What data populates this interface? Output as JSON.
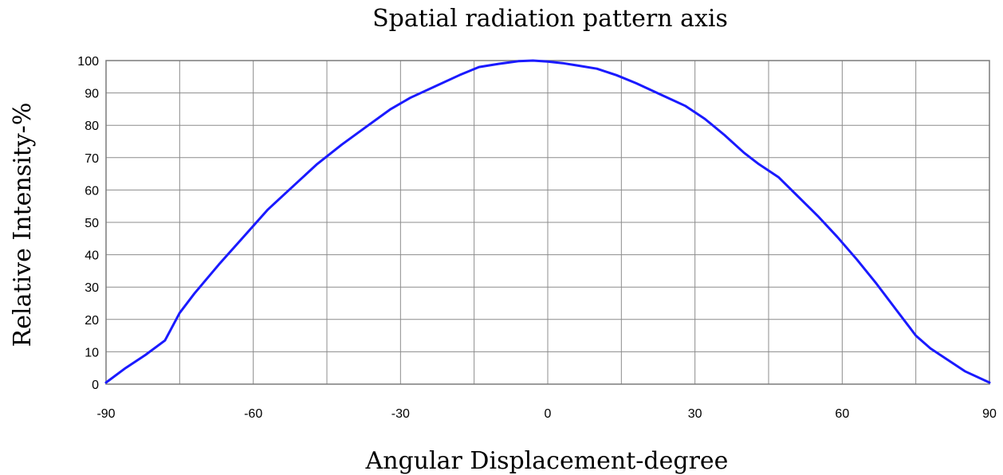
{
  "chart_data": {
    "type": "line",
    "title": "Spatial radiation pattern axis",
    "xlabel": "Angular Displacement-degree",
    "ylabel": "Relative Intensity-%",
    "xlim": [
      -90,
      90
    ],
    "ylim": [
      0,
      100
    ],
    "x_ticks": [
      -90,
      -60,
      -30,
      0,
      30,
      60,
      90
    ],
    "y_ticks": [
      0,
      10,
      20,
      30,
      40,
      50,
      60,
      70,
      80,
      90,
      100
    ],
    "grid": true,
    "x_grid_step": 15,
    "y_grid_step": 10,
    "series": [
      {
        "color": "#1a1aff",
        "x": [
          -90,
          -86,
          -82,
          -78,
          -75,
          -72,
          -67,
          -62,
          -57,
          -52,
          -47,
          -42,
          -37,
          -32,
          -28,
          -23,
          -18,
          -14,
          -10,
          -6,
          -3,
          0,
          3,
          6,
          10,
          14,
          18,
          23,
          28,
          32,
          36,
          40,
          43,
          47,
          51,
          55,
          59,
          63,
          67,
          71,
          75,
          78,
          81,
          85,
          90
        ],
        "y": [
          0.5,
          5,
          9,
          13.5,
          22,
          28,
          37,
          45.5,
          54,
          61,
          68,
          74,
          79.5,
          85,
          88.5,
          92,
          95.5,
          98,
          99,
          99.8,
          100,
          99.7,
          99.2,
          98.5,
          97.5,
          95.5,
          93,
          89.5,
          86,
          82,
          77,
          71.5,
          68,
          64,
          58,
          52,
          45.5,
          38.5,
          31,
          23,
          15,
          11,
          8,
          4,
          0.5
        ]
      }
    ]
  }
}
